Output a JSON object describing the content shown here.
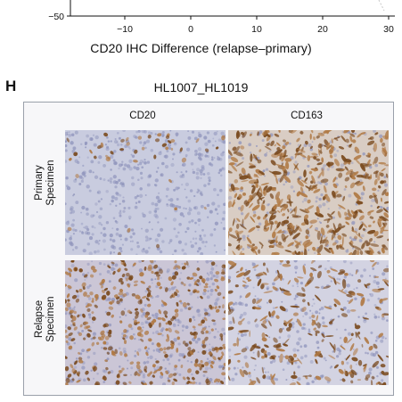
{
  "axis": {
    "y_tick_label": "−50",
    "x_ticks": [
      "−10",
      "0",
      "10",
      "20",
      "30"
    ],
    "title": "CD20 IHC Difference (relapse–primary)"
  },
  "panel": {
    "letter": "H",
    "title": "HL1007_HL1019",
    "columns": [
      "CD20",
      "CD163"
    ],
    "rows": [
      {
        "line1": "Primary",
        "line2": "Specimen"
      },
      {
        "line1": "Relapse",
        "line2": "Specimen"
      }
    ]
  },
  "colors": {
    "background_stain": "#c9ccdf",
    "hematoxylin": "#8e93bb",
    "dab_brown": "#7a4a1e",
    "dab_light": "#b07a45"
  }
}
